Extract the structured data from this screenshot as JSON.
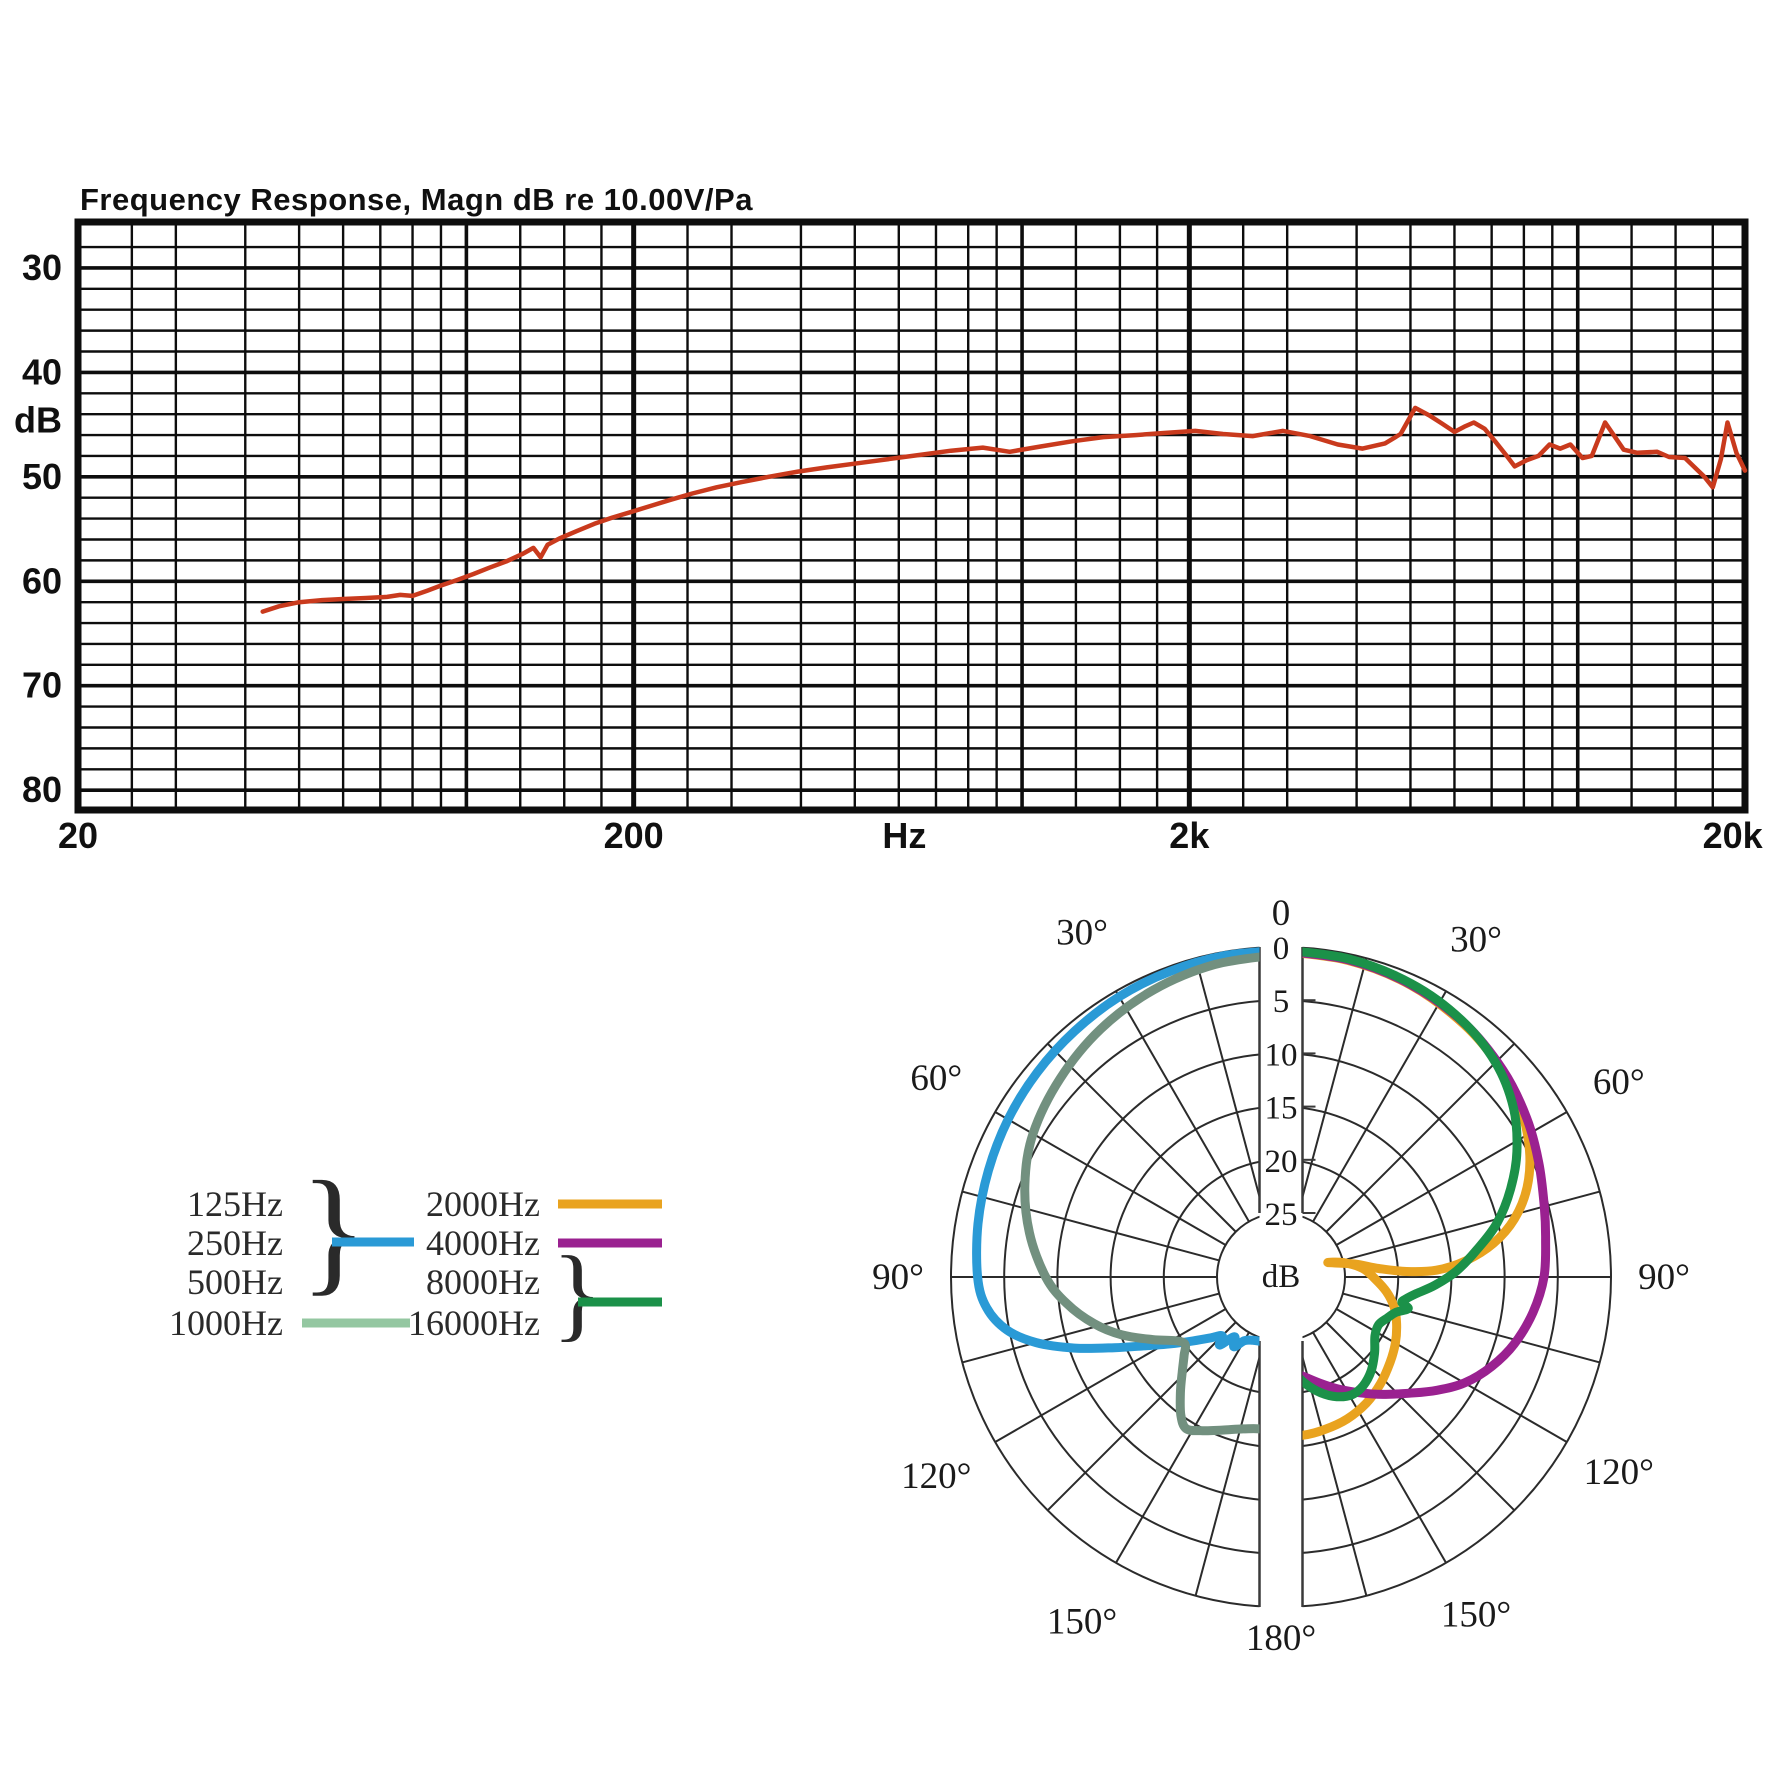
{
  "figure": {
    "background": "#ffffff"
  },
  "chart_data": [
    {
      "type": "line",
      "title": "Frequency Response, Magn dB re 10.00V/Pa",
      "xlabel": "Hz",
      "ylabel": "dB",
      "x_scale": "log",
      "xlim": [
        20,
        20000
      ],
      "ylim": [
        25.6,
        81.9
      ],
      "y_inverted": true,
      "grid": true,
      "x_tick_labels": [
        {
          "text": "20",
          "f": 20
        },
        {
          "text": "200",
          "f": 200
        },
        {
          "text": "Hz",
          "f": 614
        },
        {
          "text": "2k",
          "f": 2000
        },
        {
          "text": "20k",
          "f": 19000
        }
      ],
      "y_tick_labels": [
        {
          "text": "30",
          "db": 30
        },
        {
          "text": "40",
          "db": 40
        },
        {
          "text": "dB",
          "db": 44.6
        },
        {
          "text": "50",
          "db": 50
        },
        {
          "text": "60",
          "db": 60
        },
        {
          "text": "70",
          "db": 70
        },
        {
          "text": "80",
          "db": 80
        }
      ],
      "series": [
        {
          "name": "frequency-response",
          "color": "#c93a1d",
          "points": [
            [
              43,
              62.9
            ],
            [
              46,
              62.4
            ],
            [
              50,
              62.0
            ],
            [
              55,
              61.8
            ],
            [
              60,
              61.7
            ],
            [
              66,
              61.6
            ],
            [
              72,
              61.5
            ],
            [
              76,
              61.3
            ],
            [
              80,
              61.4
            ],
            [
              85,
              60.9
            ],
            [
              90,
              60.4
            ],
            [
              96,
              59.9
            ],
            [
              103,
              59.3
            ],
            [
              110,
              58.7
            ],
            [
              118,
              58.1
            ],
            [
              126,
              57.4
            ],
            [
              132,
              56.8
            ],
            [
              136,
              57.7
            ],
            [
              140,
              56.5
            ],
            [
              147,
              55.9
            ],
            [
              158,
              55.2
            ],
            [
              170,
              54.5
            ],
            [
              183,
              53.9
            ],
            [
              197,
              53.4
            ],
            [
              214,
              52.8
            ],
            [
              233,
              52.2
            ],
            [
              255,
              51.6
            ],
            [
              282,
              51.0
            ],
            [
              313,
              50.5
            ],
            [
              350,
              50.0
            ],
            [
              395,
              49.5
            ],
            [
              445,
              49.1
            ],
            [
              505,
              48.7
            ],
            [
              575,
              48.3
            ],
            [
              655,
              47.9
            ],
            [
              745,
              47.5
            ],
            [
              850,
              47.2
            ],
            [
              950,
              47.6
            ],
            [
              1080,
              47.1
            ],
            [
              1230,
              46.6
            ],
            [
              1400,
              46.2
            ],
            [
              1600,
              46.0
            ],
            [
              1800,
              45.8
            ],
            [
              2050,
              45.6
            ],
            [
              2300,
              45.9
            ],
            [
              2600,
              46.1
            ],
            [
              2950,
              45.6
            ],
            [
              3300,
              46.1
            ],
            [
              3700,
              46.9
            ],
            [
              4100,
              47.3
            ],
            [
              4500,
              46.8
            ],
            [
              4800,
              45.9
            ],
            [
              5100,
              43.4
            ],
            [
              5400,
              44.1
            ],
            [
              5700,
              44.9
            ],
            [
              6000,
              45.7
            ],
            [
              6250,
              45.2
            ],
            [
              6500,
              44.8
            ],
            [
              6800,
              45.4
            ],
            [
              7100,
              46.6
            ],
            [
              7450,
              48.0
            ],
            [
              7700,
              49.0
            ],
            [
              8100,
              48.4
            ],
            [
              8500,
              48.0
            ],
            [
              8900,
              46.9
            ],
            [
              9300,
              47.3
            ],
            [
              9700,
              46.9
            ],
            [
              10200,
              48.2
            ],
            [
              10600,
              48.0
            ],
            [
              11200,
              44.8
            ],
            [
              12100,
              47.4
            ],
            [
              12800,
              47.7
            ],
            [
              13900,
              47.6
            ],
            [
              14600,
              48.1
            ],
            [
              15600,
              48.2
            ],
            [
              16900,
              50.0
            ],
            [
              17500,
              51.0
            ],
            [
              18100,
              48.3
            ],
            [
              18600,
              44.8
            ],
            [
              19300,
              47.7
            ],
            [
              20000,
              49.4
            ]
          ]
        }
      ]
    },
    {
      "type": "polar",
      "radial_unit": "dB",
      "radial_ticks": [
        0,
        5,
        10,
        15,
        20,
        25
      ],
      "radial_max_db": 25,
      "angle_step_deg": 15,
      "angle_labels": [
        {
          "text": "0",
          "angle": 0
        },
        {
          "text": "30°",
          "angle": 30
        },
        {
          "text": "30°",
          "angle": -30
        },
        {
          "text": "60°",
          "angle": 60
        },
        {
          "text": "60°",
          "angle": -60
        },
        {
          "text": "90°",
          "angle": 90
        },
        {
          "text": "90°",
          "angle": -90
        },
        {
          "text": "120°",
          "angle": 120
        },
        {
          "text": "120°",
          "angle": -120
        },
        {
          "text": "150°",
          "angle": 150
        },
        {
          "text": "150°",
          "angle": -150
        },
        {
          "text": "180°",
          "angle": 180
        }
      ],
      "series": [
        {
          "name": "125-500Hz",
          "side": "left",
          "color": "#2a9ad6",
          "points": [
            [
              0,
              0.3
            ],
            [
              10,
              0.35
            ],
            [
              20,
              0.45
            ],
            [
              30,
              0.6
            ],
            [
              40,
              0.85
            ],
            [
              50,
              1.1
            ],
            [
              60,
              1.4
            ],
            [
              70,
              1.75
            ],
            [
              80,
              2.1
            ],
            [
              90,
              2.5
            ],
            [
              96,
              3.2
            ],
            [
              101,
              4.8
            ],
            [
              105,
              7.2
            ],
            [
              109,
              10.5
            ],
            [
              113,
              14.0
            ],
            [
              117,
              16.8
            ],
            [
              121,
              18.8
            ],
            [
              126,
              20.8
            ],
            [
              131,
              22.3
            ],
            [
              135,
              23.2
            ],
            [
              138,
              22.4
            ],
            [
              142,
              23.9
            ],
            [
              146,
              23.1
            ],
            [
              150,
              24.1
            ],
            [
              156,
              24.5
            ],
            [
              164,
              24.7
            ],
            [
              172,
              24.8
            ],
            [
              180,
              24.8
            ]
          ]
        },
        {
          "name": "1000Hz",
          "side": "left",
          "color": "#72907f",
          "points": [
            [
              0,
              0.7
            ],
            [
              12,
              1.0
            ],
            [
              24,
              1.5
            ],
            [
              36,
              2.2
            ],
            [
              48,
              3.1
            ],
            [
              60,
              4.1
            ],
            [
              70,
              5.4
            ],
            [
              80,
              7.0
            ],
            [
              90,
              8.9
            ],
            [
              97,
              10.7
            ],
            [
              104,
              12.9
            ],
            [
              110,
              15.1
            ],
            [
              116,
              17.6
            ],
            [
              121,
              19.4
            ],
            [
              125,
              20.0
            ],
            [
              129,
              19.3
            ],
            [
              134,
              18.1
            ],
            [
              139,
              16.6
            ],
            [
              144,
              15.0
            ],
            [
              148,
              14.2
            ],
            [
              153,
              14.8
            ],
            [
              159,
              15.6
            ],
            [
              166,
              16.3
            ],
            [
              173,
              16.6
            ],
            [
              180,
              16.1
            ]
          ]
        },
        {
          "name": "2000Hz",
          "side": "right",
          "color": "#e9a31f",
          "points": [
            [
              0,
              0.4
            ],
            [
              12,
              0.6
            ],
            [
              24,
              1.0
            ],
            [
              36,
              1.7
            ],
            [
              46,
              2.5
            ],
            [
              55,
              3.5
            ],
            [
              63,
              4.8
            ],
            [
              70,
              6.4
            ],
            [
              76,
              8.4
            ],
            [
              81,
              10.8
            ],
            [
              85,
              13.6
            ],
            [
              87.5,
              16.4
            ],
            [
              87.5,
              19.2
            ],
            [
              85,
              21.8
            ],
            [
              80,
              24.0
            ],
            [
              73,
              26.4
            ],
            [
              77,
              25.0
            ],
            [
              84,
              23.3
            ],
            [
              91,
              22.2
            ],
            [
              98,
              21.0
            ],
            [
              105,
              20.0
            ],
            [
              112,
              19.3
            ],
            [
              120,
              18.6
            ],
            [
              128,
              18.0
            ],
            [
              137,
              17.3
            ],
            [
              146,
              16.7
            ],
            [
              155,
              16.3
            ],
            [
              164,
              16.1
            ],
            [
              172,
              16.0
            ],
            [
              180,
              16.1
            ]
          ]
        },
        {
          "name": "4000Hz",
          "side": "right",
          "color": "#9a2190",
          "points": [
            [
              0,
              0.35
            ],
            [
              12,
              0.55
            ],
            [
              24,
              0.95
            ],
            [
              36,
              1.6
            ],
            [
              47,
              2.5
            ],
            [
              57,
              3.5
            ],
            [
              66,
              4.5
            ],
            [
              75,
              5.4
            ],
            [
              82,
              5.9
            ],
            [
              90,
              6.3
            ],
            [
              98,
              7.1
            ],
            [
              106,
              8.2
            ],
            [
              113,
              9.5
            ],
            [
              120,
              11.1
            ],
            [
              126,
              12.9
            ],
            [
              132,
              14.7
            ],
            [
              139,
              16.4
            ],
            [
              146,
              17.9
            ],
            [
              153,
              19.2
            ],
            [
              160,
              20.4
            ],
            [
              167,
              21.4
            ],
            [
              173,
              22.0
            ],
            [
              180,
              22.4
            ]
          ]
        },
        {
          "name": "8000-16000Hz",
          "side": "right",
          "color": "#1b9149",
          "points": [
            [
              0,
              0.25
            ],
            [
              12,
              0.45
            ],
            [
              24,
              0.85
            ],
            [
              35,
              1.5
            ],
            [
              45,
              2.5
            ],
            [
              54,
              4.0
            ],
            [
              62,
              5.9
            ],
            [
              69,
              7.9
            ],
            [
              76,
              10.1
            ],
            [
              82,
              12.4
            ],
            [
              88,
              14.5
            ],
            [
              93,
              16.5
            ],
            [
              97,
              18.2
            ],
            [
              100,
              19.1
            ],
            [
              102,
              19.4
            ],
            [
              104,
              18.7
            ],
            [
              107,
              19.7
            ],
            [
              111,
              20.3
            ],
            [
              116,
              20.8
            ],
            [
              122,
              20.6
            ],
            [
              129,
              19.7
            ],
            [
              136,
              18.8
            ],
            [
              143,
              18.2
            ],
            [
              149,
              18.1
            ],
            [
              155,
              18.6
            ],
            [
              161,
              19.5
            ],
            [
              167,
              20.7
            ],
            [
              172,
              21.9
            ],
            [
              176,
              22.9
            ],
            [
              180,
              21.6
            ]
          ]
        }
      ],
      "center_label": "dB",
      "top_label": "0"
    }
  ],
  "legend": {
    "brace": "}",
    "left_column": [
      {
        "labels": [
          "125Hz",
          "250Hz",
          "500Hz"
        ],
        "grouped": true,
        "color": "#2a9ad6"
      },
      {
        "labels": [
          "1000Hz"
        ],
        "grouped": false,
        "color": "#94c7a1"
      }
    ],
    "right_column": [
      {
        "labels": [
          "2000Hz"
        ],
        "grouped": false,
        "color": "#e9a31f"
      },
      {
        "labels": [
          "4000Hz"
        ],
        "grouped": false,
        "color": "#9a2190"
      },
      {
        "labels": [
          "8000Hz",
          "16000Hz"
        ],
        "grouped": true,
        "color": "#1b9149"
      }
    ]
  }
}
